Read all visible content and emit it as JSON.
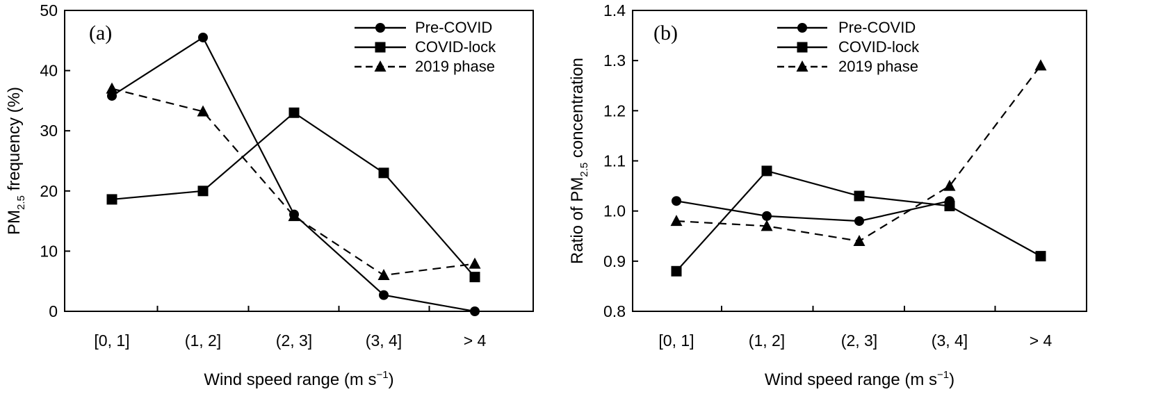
{
  "colors": {
    "line": "#000000",
    "background": "#ffffff"
  },
  "chart_data": [
    {
      "type": "line",
      "panel_label": "(a)",
      "categories": [
        "[0, 1]",
        "(1, 2]",
        "(2, 3]",
        "(3, 4]",
        "> 4"
      ],
      "xlabel": "Wind speed range (m s",
      "xlabel_sup": "−1",
      "xlabel_end": ")",
      "ylabel": "PM",
      "ylabel_sub": "2.5",
      "ylabel_end": " frequency (%)",
      "ylim": [
        0,
        50
      ],
      "yticks": [
        0,
        10,
        20,
        30,
        40,
        50
      ],
      "ytick_labels": [
        "0",
        "10",
        "20",
        "30",
        "40",
        "50"
      ],
      "grid": false,
      "legend_position": "top-right",
      "series": [
        {
          "name": "Pre-COVID",
          "marker": "circle",
          "dash": "solid",
          "values": [
            35.8,
            45.5,
            16.1,
            2.7,
            0
          ]
        },
        {
          "name": "COVID-lock",
          "marker": "square",
          "dash": "solid",
          "values": [
            18.6,
            20.0,
            33.0,
            23.0,
            5.7
          ]
        },
        {
          "name": "2019 phase",
          "marker": "triangle",
          "dash": "dashed",
          "values": [
            37.0,
            33.2,
            15.8,
            6.0,
            7.9
          ]
        }
      ]
    },
    {
      "type": "line",
      "panel_label": "(b)",
      "categories": [
        "[0, 1]",
        "(1, 2]",
        "(2, 3]",
        "(3, 4]",
        "> 4"
      ],
      "xlabel": "Wind speed range (m s",
      "xlabel_sup": "−1",
      "xlabel_end": ")",
      "ylabel": "Ratio of PM",
      "ylabel_sub": "2.5",
      "ylabel_end": " concentration",
      "ylim": [
        0.8,
        1.4
      ],
      "yticks": [
        0.8,
        0.9,
        1.0,
        1.1,
        1.2,
        1.3,
        1.4
      ],
      "ytick_labels": [
        "0.8",
        "0.9",
        "1.0",
        "1.1",
        "1.2",
        "1.3",
        "1.4"
      ],
      "grid": false,
      "legend_position": "top-center",
      "series": [
        {
          "name": "Pre-COVID",
          "marker": "circle",
          "dash": "solid",
          "values": [
            1.02,
            0.99,
            0.98,
            1.02,
            null
          ]
        },
        {
          "name": "COVID-lock",
          "marker": "square",
          "dash": "solid",
          "values": [
            0.88,
            1.08,
            1.03,
            1.01,
            0.91
          ]
        },
        {
          "name": "2019 phase",
          "marker": "triangle",
          "dash": "dashed",
          "values": [
            0.98,
            0.97,
            0.94,
            1.05,
            1.29
          ]
        }
      ]
    }
  ]
}
